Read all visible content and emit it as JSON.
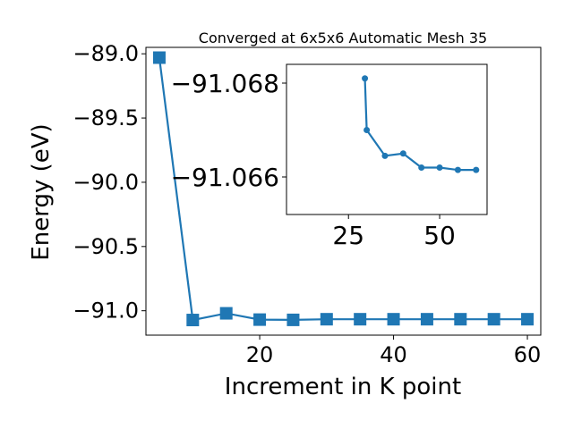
{
  "colors": {
    "series": "#1f77b4",
    "axes": "#000000",
    "background": "#ffffff"
  },
  "chart_data": [
    {
      "type": "line",
      "panel": "main",
      "title": "Converged at 6x5x6 Automatic Mesh 35",
      "xlabel": "Increment in K point",
      "ylabel": "Energy (eV)",
      "xlim": [
        3,
        62
      ],
      "ylim": [
        -91.19,
        -88.95
      ],
      "xticks": [
        20,
        40,
        60
      ],
      "xtick_labels": [
        "20",
        "40",
        "60"
      ],
      "yticks": [
        -89.0,
        -89.5,
        -90.0,
        -90.5,
        -91.0
      ],
      "ytick_labels": [
        "−89.0",
        "−89.5",
        "−90.0",
        "−90.5",
        "−91.0"
      ],
      "marker": "square",
      "grid": false,
      "series": [
        {
          "x": [
            5,
            10,
            15,
            20,
            25,
            30,
            35,
            40,
            45,
            50,
            55,
            60
          ],
          "y": [
            -89.03,
            -91.072,
            -91.02,
            -91.069,
            -91.071,
            -91.066,
            -91.066,
            -91.066,
            -91.066,
            -91.066,
            -91.066,
            -91.066
          ]
        }
      ]
    },
    {
      "type": "line",
      "panel": "inset",
      "xlim": [
        8,
        63
      ],
      "ylim": [
        -91.0652,
        -91.0684
      ],
      "xticks": [
        25,
        50
      ],
      "xtick_labels": [
        "25",
        "50"
      ],
      "yticks": [
        -91.068,
        -91.066
      ],
      "ytick_labels": [
        "−91.068",
        "−91.066"
      ],
      "marker": "circle",
      "grid": false,
      "series": [
        {
          "x": [
            29.5,
            30,
            35,
            40,
            45,
            50,
            55,
            60
          ],
          "y": [
            -91.0681,
            -91.067,
            -91.06645,
            -91.0665,
            -91.0662,
            -91.0662,
            -91.06615,
            -91.06615
          ]
        }
      ]
    }
  ]
}
